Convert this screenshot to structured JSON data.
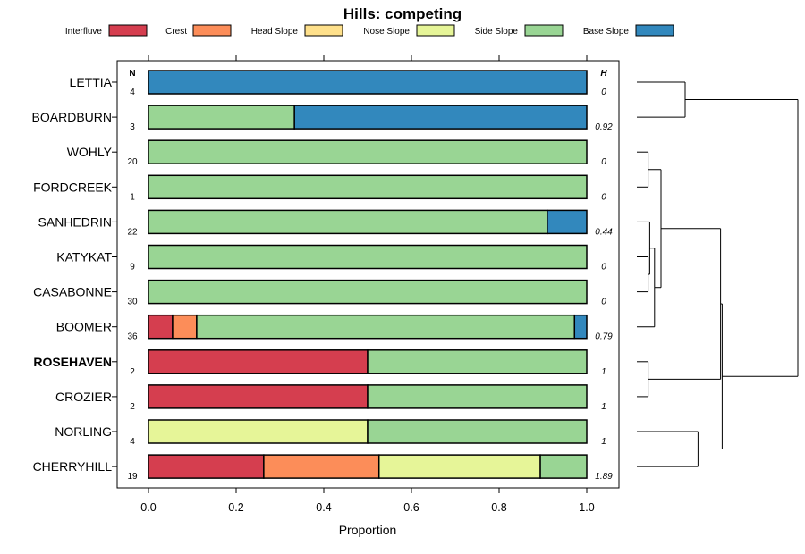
{
  "chart_data": {
    "type": "bar",
    "orientation": "horizontal",
    "stacked": true,
    "title": "Hills: competing",
    "xlabel": "Proportion",
    "xlim": [
      0,
      1
    ],
    "xticks": [
      "0.0",
      "0.2",
      "0.4",
      "0.6",
      "0.8",
      "1.0"
    ],
    "xtick_values": [
      0,
      0.2,
      0.4,
      0.6,
      0.8,
      1.0
    ],
    "n_header": "N",
    "h_header": "H",
    "legend_position": "top",
    "series": [
      {
        "name": "Interfluve",
        "color": "#d53e4f"
      },
      {
        "name": "Crest",
        "color": "#fc8d59"
      },
      {
        "name": "Head Slope",
        "color": "#fee08b"
      },
      {
        "name": "Nose Slope",
        "color": "#e6f598"
      },
      {
        "name": "Side Slope",
        "color": "#99d594"
      },
      {
        "name": "Base Slope",
        "color": "#3288bd"
      }
    ],
    "rows": [
      {
        "label": "LETTIA",
        "n": "4",
        "h": "0",
        "bold": false,
        "values": [
          0,
          0,
          0,
          0,
          0,
          1
        ]
      },
      {
        "label": "BOARDBURN",
        "n": "3",
        "h": "0.92",
        "bold": false,
        "values": [
          0,
          0,
          0,
          0,
          0.333,
          0.667
        ]
      },
      {
        "label": "WOHLY",
        "n": "20",
        "h": "0",
        "bold": false,
        "values": [
          0,
          0,
          0,
          0,
          1,
          0
        ]
      },
      {
        "label": "FORDCREEK",
        "n": "1",
        "h": "0",
        "bold": false,
        "values": [
          0,
          0,
          0,
          0,
          1,
          0
        ]
      },
      {
        "label": "SANHEDRIN",
        "n": "22",
        "h": "0.44",
        "bold": false,
        "values": [
          0,
          0,
          0,
          0,
          0.91,
          0.09
        ]
      },
      {
        "label": "KATYKAT",
        "n": "9",
        "h": "0",
        "bold": false,
        "values": [
          0,
          0,
          0,
          0,
          1,
          0
        ]
      },
      {
        "label": "CASABONNE",
        "n": "30",
        "h": "0",
        "bold": false,
        "values": [
          0,
          0,
          0,
          0,
          1,
          0
        ]
      },
      {
        "label": "BOOMER",
        "n": "36",
        "h": "0.79",
        "bold": false,
        "values": [
          0.055,
          0.055,
          0,
          0,
          0.862,
          0.028
        ]
      },
      {
        "label": "ROSEHAVEN",
        "n": "2",
        "h": "1",
        "bold": true,
        "values": [
          0.5,
          0,
          0,
          0,
          0.5,
          0
        ]
      },
      {
        "label": "CROZIER",
        "n": "2",
        "h": "1",
        "bold": false,
        "values": [
          0.5,
          0,
          0,
          0,
          0.5,
          0
        ]
      },
      {
        "label": "NORLING",
        "n": "4",
        "h": "1",
        "bold": false,
        "values": [
          0,
          0,
          0,
          0.5,
          0.5,
          0
        ]
      },
      {
        "label": "CHERRYHILL",
        "n": "19",
        "h": "1.89",
        "bold": false,
        "values": [
          0.263,
          0.263,
          0,
          0.368,
          0.106,
          0
        ]
      }
    ],
    "dendrogram": {
      "description": "hierarchical clustering tree of the rows, heights in tree units (0 = leaves)",
      "max_height": 1.0,
      "merges": [
        {
          "id": "A",
          "left": "LETTIA",
          "right": "BOARDBURN",
          "height": 0.3
        },
        {
          "id": "B",
          "left": "WOHLY",
          "right": "FORDCREEK",
          "height": 0.07
        },
        {
          "id": "C",
          "left": "KATYKAT",
          "right": "CASABONNE",
          "height": 0.07
        },
        {
          "id": "D",
          "left": "SANHEDRIN",
          "right": "C",
          "height": 0.08
        },
        {
          "id": "E",
          "left": "D",
          "right": "BOOMER",
          "height": 0.11
        },
        {
          "id": "F",
          "left": "B",
          "right": "E",
          "height": 0.15
        },
        {
          "id": "G",
          "left": "ROSEHAVEN",
          "right": "CROZIER",
          "height": 0.07
        },
        {
          "id": "H",
          "left": "F",
          "right": "G",
          "height": 0.52
        },
        {
          "id": "I",
          "left": "NORLING",
          "right": "CHERRYHILL",
          "height": 0.38
        },
        {
          "id": "J",
          "left": "H",
          "right": "I",
          "height": 0.53
        },
        {
          "id": "K",
          "left": "A",
          "right": "J",
          "height": 1.0
        }
      ]
    }
  }
}
